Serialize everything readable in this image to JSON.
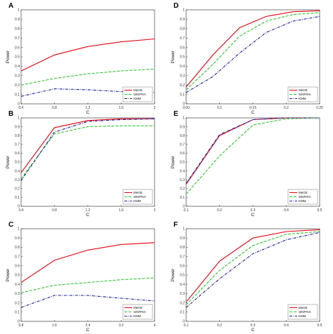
{
  "colors": {
    "MeGE": "#e8000b",
    "SINFRIA": "#28c828",
    "KMM": "#1a1aaa"
  },
  "chart_data": [
    {
      "label": "A",
      "type": "line",
      "xlabel": "C",
      "ylabel": "Power",
      "ylim": [
        0,
        1
      ],
      "xticks": [
        "0.4",
        "0.8",
        "1.2",
        "1.6",
        "2"
      ],
      "yticks": [
        "0",
        "0.1",
        "0.2",
        "0.3",
        "0.4",
        "0.5",
        "0.6",
        "0.7",
        "0.8",
        "0.9",
        "1"
      ],
      "legend": "bottom-right",
      "x": [
        0.4,
        0.8,
        1.2,
        1.6,
        2.0
      ],
      "series": [
        {
          "name": "MeGE",
          "style": "solid",
          "values": [
            0.35,
            0.52,
            0.61,
            0.66,
            0.69
          ]
        },
        {
          "name": "SINFRIA",
          "style": "dashed",
          "values": [
            0.2,
            0.27,
            0.32,
            0.35,
            0.37
          ]
        },
        {
          "name": "KMM",
          "style": "dashdot",
          "values": [
            0.08,
            0.16,
            0.15,
            0.13,
            0.12
          ]
        }
      ]
    },
    {
      "label": "B",
      "type": "line",
      "xlabel": "C",
      "ylabel": "Power",
      "ylim": [
        0,
        1
      ],
      "xticks": [
        "0.4",
        "0.8",
        "1.2",
        "1.6",
        "2"
      ],
      "yticks": [
        "0",
        "0.1",
        "0.2",
        "0.3",
        "0.4",
        "0.5",
        "0.6",
        "0.7",
        "0.8",
        "0.9",
        "1"
      ],
      "legend": "bottom-right",
      "x": [
        0.4,
        0.8,
        1.2,
        1.6,
        2.0
      ],
      "series": [
        {
          "name": "MeGE",
          "style": "solid",
          "values": [
            0.38,
            0.89,
            0.97,
            0.99,
            0.99
          ]
        },
        {
          "name": "SINFRIA",
          "style": "dashed",
          "values": [
            0.31,
            0.82,
            0.9,
            0.91,
            0.91
          ]
        },
        {
          "name": "KMM",
          "style": "dashdot",
          "values": [
            0.29,
            0.84,
            0.96,
            0.98,
            0.99
          ]
        }
      ]
    },
    {
      "label": "C",
      "type": "line",
      "xlabel": "C",
      "ylabel": "Power",
      "ylim": [
        0,
        1
      ],
      "xticks": [
        "0.8",
        "1.6",
        "2.4",
        "3.2",
        "4"
      ],
      "yticks": [
        "0",
        "0.1",
        "0.2",
        "0.3",
        "0.4",
        "0.5",
        "0.6",
        "0.7",
        "0.8",
        "0.9",
        "1"
      ],
      "legend": "bottom-right",
      "x": [
        0.8,
        1.6,
        2.4,
        3.2,
        4.0
      ],
      "series": [
        {
          "name": "MeGE",
          "style": "solid",
          "values": [
            0.42,
            0.66,
            0.77,
            0.83,
            0.85
          ]
        },
        {
          "name": "SINFRIA",
          "style": "dashed",
          "values": [
            0.31,
            0.39,
            0.42,
            0.45,
            0.47
          ]
        },
        {
          "name": "KMM",
          "style": "dashdot",
          "values": [
            0.15,
            0.28,
            0.28,
            0.25,
            0.22
          ]
        }
      ]
    },
    {
      "label": "D",
      "type": "line",
      "xlabel": "C",
      "ylabel": "Power",
      "ylim": [
        0,
        1
      ],
      "xticks": [
        "0.00",
        "0.1",
        "0.15",
        "0.2",
        "0.25"
      ],
      "yticks": [
        "0",
        "0.1",
        "0.2",
        "0.3",
        "0.4",
        "0.5",
        "0.6",
        "0.7",
        "0.8",
        "0.9",
        "1"
      ],
      "legend": "bottom-right",
      "x": [
        0.0,
        0.05,
        0.1,
        0.15,
        0.2,
        0.25
      ],
      "series": [
        {
          "name": "MeGE",
          "style": "solid",
          "values": [
            0.18,
            0.52,
            0.81,
            0.93,
            0.98,
            0.99
          ]
        },
        {
          "name": "SINFRIA",
          "style": "dashed",
          "values": [
            0.15,
            0.42,
            0.72,
            0.88,
            0.95,
            0.97
          ]
        },
        {
          "name": "KMM",
          "style": "dashdot",
          "values": [
            0.12,
            0.29,
            0.54,
            0.76,
            0.88,
            0.93
          ]
        }
      ]
    },
    {
      "label": "E",
      "type": "line",
      "xlabel": "C",
      "ylabel": "Power",
      "ylim": [
        0,
        1
      ],
      "xticks": [
        "0.1",
        "0.2",
        "0.3",
        "0.4",
        "0.5"
      ],
      "yticks": [
        "0",
        "0.1",
        "0.2",
        "0.3",
        "0.4",
        "0.5",
        "0.6",
        "0.7",
        "0.8",
        "0.9",
        "1"
      ],
      "legend": "bottom-right",
      "x": [
        0.1,
        0.2,
        0.3,
        0.4,
        0.5
      ],
      "series": [
        {
          "name": "MeGE",
          "style": "solid",
          "values": [
            0.25,
            0.8,
            0.98,
            1.0,
            1.0
          ]
        },
        {
          "name": "SINFRIA",
          "style": "dashed",
          "values": [
            0.14,
            0.57,
            0.92,
            0.99,
            1.0
          ]
        },
        {
          "name": "KMM",
          "style": "dashdot",
          "values": [
            0.26,
            0.81,
            0.98,
            1.0,
            1.0
          ]
        }
      ]
    },
    {
      "label": "F",
      "type": "line",
      "xlabel": "C",
      "ylabel": "Power",
      "ylim": [
        0,
        1
      ],
      "xticks": [
        "0.1",
        "0.2",
        "0.3",
        "0.4",
        "0.5"
      ],
      "yticks": [
        "0",
        "0.1",
        "0.2",
        "0.3",
        "0.4",
        "0.5",
        "0.6",
        "0.7",
        "0.8",
        "0.9",
        "1"
      ],
      "legend": "bottom-right",
      "x": [
        0.1,
        0.2,
        0.3,
        0.4,
        0.5
      ],
      "series": [
        {
          "name": "MeGE",
          "style": "solid",
          "values": [
            0.21,
            0.65,
            0.9,
            0.97,
            0.99
          ]
        },
        {
          "name": "SINFRIA",
          "style": "dashed",
          "values": [
            0.18,
            0.55,
            0.82,
            0.94,
            0.97
          ]
        },
        {
          "name": "KMM",
          "style": "dashdot",
          "values": [
            0.15,
            0.46,
            0.73,
            0.88,
            0.96
          ]
        }
      ]
    }
  ]
}
